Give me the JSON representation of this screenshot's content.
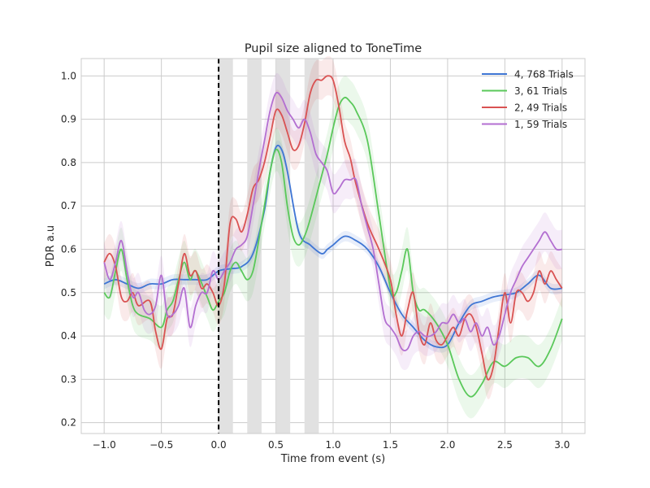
{
  "chart_data": {
    "type": "line",
    "title": "Pupil size aligned to ToneTime",
    "xlabel": "Time from event (s)",
    "ylabel": "PDR a.u",
    "xlim": [
      -1.2,
      3.2
    ],
    "ylim": [
      0.175,
      1.04
    ],
    "xticks": [
      -1.0,
      -0.5,
      0.0,
      0.5,
      1.0,
      1.5,
      2.0,
      2.5,
      3.0
    ],
    "xtick_labels": [
      "−1.0",
      "−0.5",
      "0.0",
      "0.5",
      "1.0",
      "1.5",
      "2.0",
      "2.5",
      "3.0"
    ],
    "yticks": [
      0.2,
      0.3,
      0.4,
      0.5,
      0.6,
      0.7,
      0.8,
      0.9,
      1.0
    ],
    "ytick_labels": [
      "0.2",
      "0.3",
      "0.4",
      "0.5",
      "0.6",
      "0.7",
      "0.8",
      "0.9",
      "1.0"
    ],
    "grid": true,
    "legend_position": "top-right",
    "event_line_x": 0.0,
    "shaded_intervals": [
      [
        0.0,
        0.125
      ],
      [
        0.25,
        0.375
      ],
      [
        0.5,
        0.625
      ],
      [
        0.75,
        0.875
      ]
    ],
    "series": [
      {
        "name": "4, 768 Trials",
        "color": "#3f76d4",
        "band": 0.012,
        "x": [
          -1.0,
          -0.9,
          -0.8,
          -0.7,
          -0.6,
          -0.5,
          -0.4,
          -0.3,
          -0.2,
          -0.1,
          0.0,
          0.1,
          0.2,
          0.3,
          0.4,
          0.45,
          0.5,
          0.55,
          0.6,
          0.7,
          0.8,
          0.9,
          0.95,
          1.0,
          1.1,
          1.2,
          1.3,
          1.4,
          1.5,
          1.6,
          1.7,
          1.8,
          1.9,
          2.0,
          2.1,
          2.2,
          2.3,
          2.4,
          2.5,
          2.6,
          2.7,
          2.8,
          2.9,
          3.0
        ],
        "y": [
          0.52,
          0.53,
          0.52,
          0.51,
          0.52,
          0.52,
          0.53,
          0.53,
          0.53,
          0.53,
          0.55,
          0.555,
          0.56,
          0.59,
          0.69,
          0.78,
          0.835,
          0.83,
          0.78,
          0.64,
          0.61,
          0.59,
          0.6,
          0.61,
          0.63,
          0.62,
          0.6,
          0.56,
          0.5,
          0.45,
          0.42,
          0.39,
          0.375,
          0.38,
          0.43,
          0.47,
          0.48,
          0.49,
          0.495,
          0.5,
          0.52,
          0.54,
          0.51,
          0.51
        ]
      },
      {
        "name": "3, 61 Trials",
        "color": "#5ac85a",
        "band": 0.05,
        "x": [
          -1.0,
          -0.95,
          -0.9,
          -0.85,
          -0.8,
          -0.75,
          -0.7,
          -0.6,
          -0.5,
          -0.45,
          -0.4,
          -0.35,
          -0.3,
          -0.25,
          -0.2,
          -0.1,
          -0.05,
          0.0,
          0.05,
          0.1,
          0.15,
          0.2,
          0.25,
          0.3,
          0.35,
          0.4,
          0.45,
          0.5,
          0.55,
          0.6,
          0.65,
          0.7,
          0.75,
          0.8,
          0.9,
          0.95,
          1.0,
          1.05,
          1.1,
          1.15,
          1.2,
          1.3,
          1.4,
          1.5,
          1.55,
          1.6,
          1.65,
          1.7,
          1.75,
          1.8,
          1.9,
          2.0,
          2.1,
          2.2,
          2.3,
          2.4,
          2.5,
          2.6,
          2.7,
          2.8,
          2.9,
          3.0
        ],
        "y": [
          0.5,
          0.49,
          0.55,
          0.6,
          0.53,
          0.47,
          0.45,
          0.44,
          0.42,
          0.46,
          0.48,
          0.53,
          0.57,
          0.53,
          0.55,
          0.49,
          0.46,
          0.48,
          0.5,
          0.55,
          0.57,
          0.55,
          0.53,
          0.55,
          0.62,
          0.7,
          0.78,
          0.83,
          0.8,
          0.7,
          0.63,
          0.61,
          0.63,
          0.67,
          0.77,
          0.82,
          0.88,
          0.93,
          0.95,
          0.94,
          0.92,
          0.85,
          0.68,
          0.51,
          0.5,
          0.55,
          0.6,
          0.5,
          0.46,
          0.46,
          0.43,
          0.38,
          0.3,
          0.26,
          0.29,
          0.34,
          0.33,
          0.35,
          0.35,
          0.33,
          0.37,
          0.44
        ]
      },
      {
        "name": "2, 49 Trials",
        "color": "#d95252",
        "band": 0.045,
        "x": [
          -1.0,
          -0.95,
          -0.9,
          -0.85,
          -0.8,
          -0.75,
          -0.7,
          -0.6,
          -0.55,
          -0.5,
          -0.45,
          -0.4,
          -0.35,
          -0.3,
          -0.25,
          -0.2,
          -0.15,
          -0.1,
          -0.05,
          0.0,
          0.05,
          0.1,
          0.15,
          0.2,
          0.25,
          0.3,
          0.35,
          0.4,
          0.45,
          0.5,
          0.55,
          0.6,
          0.65,
          0.7,
          0.75,
          0.8,
          0.85,
          0.9,
          0.95,
          1.0,
          1.05,
          1.1,
          1.15,
          1.2,
          1.3,
          1.4,
          1.5,
          1.55,
          1.6,
          1.65,
          1.7,
          1.75,
          1.8,
          1.85,
          1.9,
          1.95,
          2.0,
          2.05,
          2.1,
          2.15,
          2.2,
          2.25,
          2.3,
          2.35,
          2.4,
          2.45,
          2.5,
          2.55,
          2.6,
          2.65,
          2.7,
          2.75,
          2.8,
          2.85,
          2.9,
          2.95,
          3.0
        ],
        "y": [
          0.57,
          0.59,
          0.56,
          0.49,
          0.48,
          0.5,
          0.47,
          0.48,
          0.41,
          0.37,
          0.44,
          0.45,
          0.52,
          0.59,
          0.54,
          0.55,
          0.51,
          0.52,
          0.5,
          0.47,
          0.52,
          0.66,
          0.67,
          0.64,
          0.68,
          0.74,
          0.76,
          0.8,
          0.86,
          0.92,
          0.91,
          0.87,
          0.83,
          0.84,
          0.89,
          0.96,
          0.99,
          0.99,
          1.0,
          0.99,
          0.93,
          0.85,
          0.81,
          0.75,
          0.66,
          0.6,
          0.53,
          0.45,
          0.4,
          0.46,
          0.5,
          0.41,
          0.38,
          0.43,
          0.39,
          0.38,
          0.4,
          0.42,
          0.4,
          0.44,
          0.45,
          0.42,
          0.36,
          0.3,
          0.33,
          0.42,
          0.5,
          0.43,
          0.5,
          0.5,
          0.48,
          0.5,
          0.55,
          0.52,
          0.55,
          0.53,
          0.51
        ]
      },
      {
        "name": "1, 59 Trials",
        "color": "#b36fd1",
        "band": 0.045,
        "x": [
          -1.0,
          -0.95,
          -0.9,
          -0.85,
          -0.8,
          -0.75,
          -0.7,
          -0.65,
          -0.6,
          -0.55,
          -0.5,
          -0.45,
          -0.4,
          -0.35,
          -0.3,
          -0.25,
          -0.2,
          -0.15,
          -0.1,
          -0.05,
          0.0,
          0.05,
          0.1,
          0.15,
          0.2,
          0.25,
          0.3,
          0.35,
          0.4,
          0.45,
          0.5,
          0.55,
          0.6,
          0.65,
          0.7,
          0.75,
          0.8,
          0.85,
          0.9,
          0.95,
          1.0,
          1.05,
          1.1,
          1.15,
          1.2,
          1.25,
          1.3,
          1.35,
          1.4,
          1.45,
          1.5,
          1.55,
          1.6,
          1.65,
          1.7,
          1.75,
          1.8,
          1.85,
          1.9,
          1.95,
          2.0,
          2.05,
          2.1,
          2.15,
          2.2,
          2.25,
          2.3,
          2.35,
          2.4,
          2.45,
          2.5,
          2.55,
          2.6,
          2.65,
          2.7,
          2.75,
          2.8,
          2.85,
          2.9,
          2.95,
          3.0
        ],
        "y": [
          0.57,
          0.53,
          0.57,
          0.62,
          0.55,
          0.49,
          0.5,
          0.46,
          0.45,
          0.47,
          0.54,
          0.45,
          0.45,
          0.47,
          0.51,
          0.42,
          0.47,
          0.5,
          0.5,
          0.55,
          0.53,
          0.55,
          0.57,
          0.6,
          0.61,
          0.63,
          0.7,
          0.78,
          0.85,
          0.92,
          0.96,
          0.95,
          0.92,
          0.9,
          0.88,
          0.9,
          0.87,
          0.82,
          0.8,
          0.78,
          0.73,
          0.74,
          0.76,
          0.76,
          0.76,
          0.7,
          0.65,
          0.6,
          0.52,
          0.44,
          0.42,
          0.4,
          0.37,
          0.37,
          0.4,
          0.41,
          0.4,
          0.4,
          0.41,
          0.43,
          0.43,
          0.45,
          0.43,
          0.44,
          0.41,
          0.43,
          0.4,
          0.42,
          0.38,
          0.4,
          0.45,
          0.5,
          0.53,
          0.56,
          0.58,
          0.6,
          0.62,
          0.64,
          0.62,
          0.6,
          0.6
        ]
      }
    ]
  }
}
